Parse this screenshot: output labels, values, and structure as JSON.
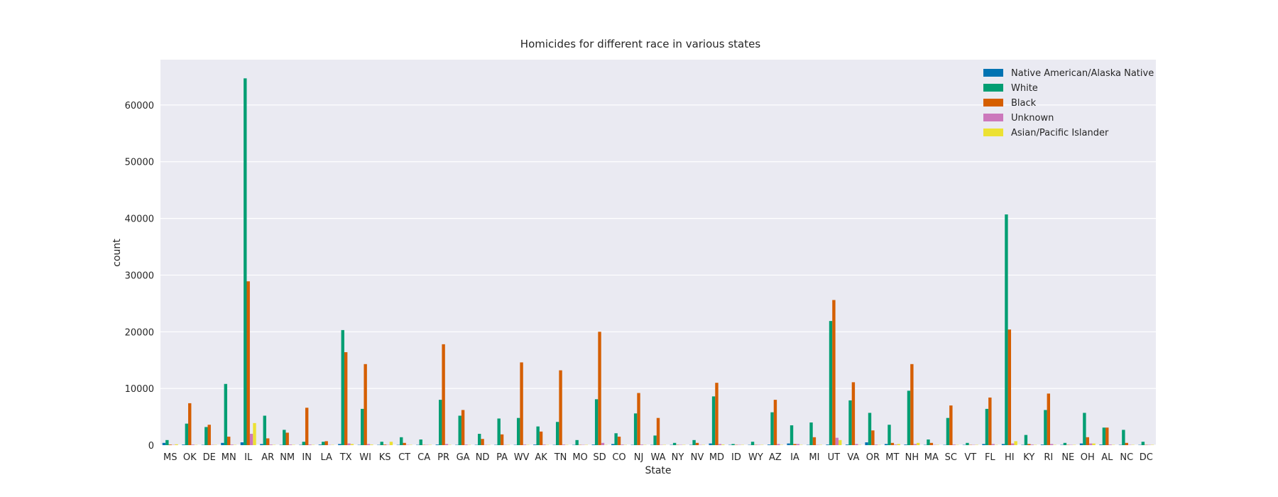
{
  "chart_data": {
    "type": "bar",
    "title": "Homicides for different race in various states",
    "xlabel": "State",
    "ylabel": "count",
    "ylim": [
      0,
      68000
    ],
    "yticks": [
      0,
      10000,
      20000,
      30000,
      40000,
      50000,
      60000
    ],
    "grid": true,
    "legend_position": "top-right",
    "colors": [
      "#0173b2",
      "#029e73",
      "#d55e00",
      "#cc78bc",
      "#ece133"
    ],
    "categories": [
      "MS",
      "OK",
      "DE",
      "MN",
      "IL",
      "AR",
      "NM",
      "IN",
      "LA",
      "TX",
      "WI",
      "KS",
      "CT",
      "CA",
      "PR",
      "GA",
      "ND",
      "PA",
      "WV",
      "AK",
      "TN",
      "MO",
      "SD",
      "CO",
      "NJ",
      "WA",
      "NY",
      "NV",
      "MD",
      "ID",
      "WY",
      "AZ",
      "IA",
      "MI",
      "UT",
      "VA",
      "OR",
      "MT",
      "NH",
      "MA",
      "SC",
      "VT",
      "FL",
      "HI",
      "KY",
      "RI",
      "NE",
      "OH",
      "AL",
      "NC",
      "DC"
    ],
    "series": [
      {
        "name": "Native American/Alaska Native",
        "values": [
          400,
          100,
          50,
          400,
          500,
          200,
          50,
          50,
          100,
          200,
          50,
          50,
          50,
          50,
          100,
          50,
          50,
          50,
          50,
          100,
          50,
          50,
          100,
          200,
          50,
          50,
          50,
          50,
          300,
          50,
          50,
          100,
          300,
          50,
          100,
          100,
          500,
          200,
          100,
          50,
          50,
          50,
          200,
          200,
          50,
          100,
          50,
          300,
          100,
          50,
          50
        ]
      },
      {
        "name": "White",
        "values": [
          900,
          3800,
          3200,
          10800,
          64700,
          5200,
          2700,
          600,
          600,
          20300,
          6400,
          600,
          1400,
          1000,
          8000,
          5200,
          2000,
          4700,
          4800,
          3300,
          4100,
          900,
          8100,
          2100,
          5600,
          1700,
          400,
          900,
          8600,
          200,
          600,
          5800,
          3500,
          4000,
          21900,
          7900,
          5700,
          3600,
          9600,
          1000,
          4800,
          400,
          6400,
          40700,
          1800,
          6200,
          400,
          5700,
          3100,
          2700,
          600
        ]
      },
      {
        "name": "Black",
        "values": [
          100,
          7400,
          3600,
          1500,
          28900,
          1200,
          2200,
          6600,
          700,
          16400,
          14300,
          100,
          400,
          50,
          17800,
          6200,
          1100,
          1900,
          14600,
          2400,
          13200,
          50,
          20000,
          1500,
          9200,
          4800,
          50,
          400,
          11000,
          50,
          50,
          8000,
          200,
          1400,
          25600,
          11100,
          2600,
          400,
          14300,
          400,
          7000,
          50,
          8400,
          20400,
          200,
          9100,
          50,
          1400,
          3100,
          400,
          50
        ]
      },
      {
        "name": "Unknown",
        "values": [
          50,
          100,
          50,
          100,
          2000,
          100,
          100,
          100,
          50,
          300,
          200,
          50,
          50,
          50,
          200,
          100,
          50,
          50,
          100,
          100,
          100,
          50,
          400,
          100,
          100,
          50,
          50,
          50,
          200,
          50,
          50,
          200,
          200,
          50,
          1300,
          200,
          100,
          100,
          200,
          50,
          100,
          50,
          200,
          300,
          100,
          200,
          50,
          300,
          100,
          50,
          50
        ]
      },
      {
        "name": "Asian/Pacific Islander",
        "values": [
          150,
          50,
          50,
          50,
          3900,
          50,
          50,
          50,
          50,
          200,
          100,
          600,
          50,
          50,
          50,
          50,
          50,
          50,
          50,
          50,
          50,
          50,
          50,
          50,
          50,
          50,
          50,
          50,
          100,
          50,
          50,
          50,
          50,
          50,
          900,
          50,
          50,
          200,
          400,
          50,
          50,
          50,
          50,
          700,
          50,
          50,
          50,
          300,
          50,
          50,
          50
        ]
      }
    ]
  }
}
